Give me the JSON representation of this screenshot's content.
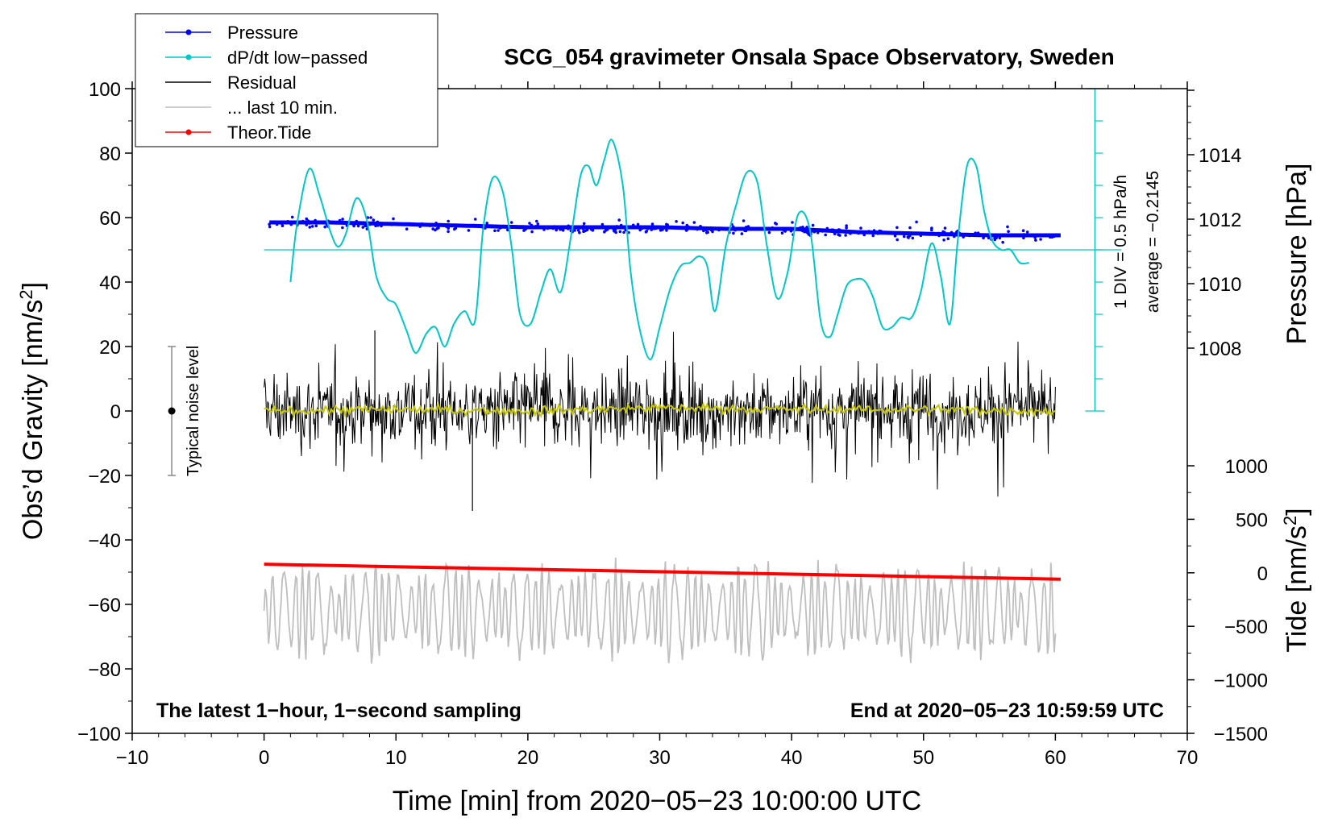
{
  "chart_data": {
    "type": "line",
    "title": "SCG_054 gravimeter Onsala Space Observatory, Sweden",
    "xlabel": "Time [min] from 2020−05−23 10:00:00 UTC",
    "ylabel_left": "Obs’d Gravity [nm/s²]",
    "ylabel_left_base": "Obs’d Gravity [nm/s",
    "ylabel_left_sup": "2",
    "ylabel_left_end": "]",
    "ylabel_pressure": "Pressure [hPa]",
    "ylabel_tide": "Tide [nm/s²]",
    "ylabel_tide_base": "Tide [nm/s",
    "ylabel_tide_sup": "2",
    "ylabel_tide_end": "]",
    "xlim": [
      -10,
      70
    ],
    "ylim_left": [
      -100,
      100
    ],
    "pressure_range": [
      1006,
      1016
    ],
    "tide_range": [
      -1500,
      1000
    ],
    "xticks": [
      "−10",
      "0",
      "10",
      "20",
      "30",
      "40",
      "50",
      "60",
      "70"
    ],
    "xtick_values": [
      -10,
      0,
      10,
      20,
      30,
      40,
      50,
      60,
      70
    ],
    "yticks_left": [
      "100",
      "80",
      "60",
      "40",
      "20",
      "0",
      "−20",
      "−40",
      "−60",
      "−80",
      "−100"
    ],
    "ytick_left_values": [
      100,
      80,
      60,
      40,
      20,
      0,
      -20,
      -40,
      -60,
      -80,
      -100
    ],
    "yticks_pressure": [
      "1014",
      "1012",
      "1010",
      "1008"
    ],
    "ytick_pressure_values": [
      1014,
      1012,
      1010,
      1008
    ],
    "yticks_tide": [
      "1000",
      "500",
      "0",
      "−500",
      "−1000",
      "−1500"
    ],
    "ytick_tide_values": [
      1000,
      500,
      0,
      -500,
      -1000,
      -1500
    ],
    "legend": [
      {
        "label": "Pressure",
        "color": "#0000ff",
        "marker": true
      },
      {
        "label": "dP/dt low−passed",
        "color": "#00c8c8",
        "marker": true
      },
      {
        "label": "Residual",
        "color": "#000000",
        "marker": false
      },
      {
        "label": "... last 10 min.",
        "color": "#bfbfbf",
        "marker": false
      },
      {
        "label": "Theor.Tide",
        "color": "#ff0000",
        "marker": true
      }
    ],
    "legend_position": "top-left",
    "annotations": {
      "bottom_left": "The latest 1−hour, 1−second sampling",
      "bottom_right": "End at 2020−05−23 10:59:59 UTC",
      "noise_label": "Typical noise level",
      "dpdt_scale": "1 DIV = 0.5 hPa/h",
      "dpdt_average": "average = −0.2145"
    },
    "noise_bar": {
      "x": -7,
      "y_low": -20,
      "y_high": 20,
      "center": 0
    },
    "dpdt_axis": {
      "x": 63,
      "y_top": 100,
      "y_bottom": 0,
      "zero_level": 50
    },
    "series": [
      {
        "name": "Pressure",
        "color": "#0000ff",
        "axis": "pressure",
        "x": [
          0.4,
          5,
          10,
          15,
          20,
          25,
          30,
          35,
          40,
          45,
          50,
          55,
          60.4
        ],
        "values": [
          1011.9,
          1011.9,
          1011.85,
          1011.8,
          1011.75,
          1011.75,
          1011.75,
          1011.7,
          1011.7,
          1011.6,
          1011.55,
          1011.5,
          1011.5
        ]
      },
      {
        "name": "dP/dt low−passed",
        "color": "#00c8c8",
        "axis": "left",
        "x": [
          2,
          2.5,
          3.4,
          4.2,
          5,
          5.6,
          6.2,
          7,
          7.8,
          8.5,
          9.3,
          10,
          10.8,
          11.5,
          12.3,
          13,
          13.7,
          14.4,
          15.2,
          16,
          16.6,
          17.3,
          18.1,
          18.8,
          19.4,
          20.2,
          21,
          21.7,
          22.5,
          23.3,
          24,
          24.6,
          25.2,
          25.8,
          26.4,
          27.2,
          27.8,
          28.5,
          29.3,
          30,
          30.8,
          31.6,
          32.3,
          33,
          33.6,
          34.2,
          35,
          35.8,
          36.6,
          37.4,
          38.1,
          38.9,
          39.7,
          40.5,
          41.4,
          42.2,
          42.9,
          43.5,
          44.2,
          45,
          45.6,
          46.2,
          46.9,
          47.6,
          48.3,
          49.1,
          49.8,
          50.6,
          51.3,
          52,
          52.6,
          53.3,
          54,
          54.6,
          55.2,
          55.9,
          56.6,
          57.3,
          58
        ],
        "values": [
          40,
          58,
          75,
          67,
          56,
          51,
          55,
          66,
          59,
          42,
          35,
          33,
          25,
          18,
          24,
          26,
          20,
          27,
          31,
          28,
          56,
          72,
          68,
          50,
          30,
          27,
          37,
          44,
          37,
          55,
          73,
          76,
          70,
          78,
          84,
          70,
          43,
          25,
          16,
          26,
          38,
          45,
          46,
          48,
          45,
          31,
          51,
          64,
          74,
          71,
          52,
          35,
          43,
          61,
          56,
          28,
          23,
          30,
          39,
          41,
          40,
          35,
          26,
          26,
          29,
          29,
          37,
          52,
          42,
          27,
          53,
          76,
          76,
          62,
          53,
          50,
          50,
          46,
          46
        ]
      },
      {
        "name": "Residual",
        "color": "#000000",
        "axis": "left",
        "x": [
          0,
          60
        ],
        "values": [
          0,
          0
        ],
        "typical_amplitude": 10,
        "extremes": {
          "max": 25,
          "min": -31
        }
      },
      {
        "name": "Residual smoothed",
        "color": "#c8c800",
        "axis": "left",
        "x": [
          0,
          10,
          20,
          30,
          40,
          50,
          60
        ],
        "values": [
          0,
          0.5,
          0,
          1,
          0.5,
          0.5,
          0
        ]
      },
      {
        "name": "... last 10 min.",
        "color": "#bfbfbf",
        "axis": "left",
        "x": [
          0,
          60
        ],
        "values": [
          -62,
          -62
        ],
        "typical_amplitude": 10,
        "extremes": {
          "max": -40,
          "min": -83
        }
      },
      {
        "name": "Theor.Tide",
        "color": "#ff0000",
        "axis": "tide",
        "x": [
          0,
          60.4
        ],
        "values": [
          80,
          -60
        ]
      }
    ]
  }
}
